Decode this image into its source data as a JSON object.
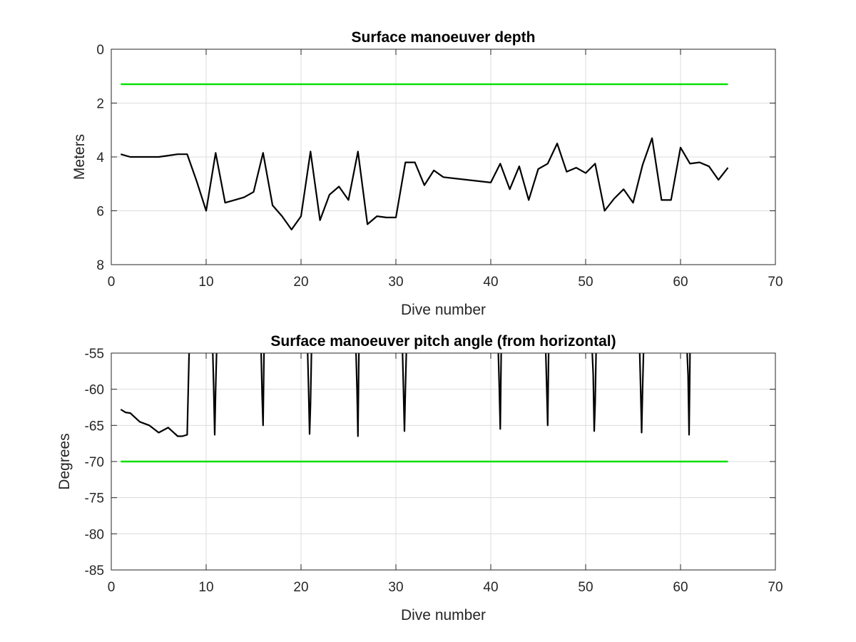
{
  "chart_data": [
    {
      "type": "line",
      "title": "Surface manoeuver depth",
      "xlabel": "Dive number",
      "ylabel": "Meters",
      "xlim": [
        0,
        70
      ],
      "ylim": [
        0,
        8
      ],
      "y_reversed": true,
      "grid": true,
      "x_ticks": [
        "0",
        "10",
        "20",
        "30",
        "40",
        "50",
        "60",
        "70"
      ],
      "y_ticks": [
        "0",
        "2",
        "4",
        "6",
        "8"
      ],
      "series": [
        {
          "color": "#000000",
          "x": [
            1,
            2,
            3,
            4,
            5,
            6,
            7,
            8,
            9,
            10,
            11,
            12,
            13,
            14,
            15,
            16,
            17,
            18,
            19,
            20,
            21,
            22,
            23,
            24,
            25,
            26,
            27,
            28,
            29,
            30,
            31,
            32,
            33,
            34,
            35,
            40,
            41,
            42,
            43,
            44,
            45,
            46,
            47,
            48,
            49,
            50,
            51,
            52,
            53,
            54,
            55,
            56,
            57,
            58,
            59,
            60,
            61,
            62,
            63,
            64,
            65
          ],
          "y": [
            3.9,
            4.0,
            4.0,
            4.0,
            4.0,
            3.95,
            3.9,
            3.9,
            4.9,
            6.0,
            3.85,
            5.7,
            5.6,
            5.5,
            5.3,
            3.85,
            5.8,
            6.2,
            6.7,
            6.2,
            3.8,
            6.35,
            5.4,
            5.1,
            5.6,
            3.8,
            6.5,
            6.2,
            6.25,
            6.25,
            4.2,
            4.2,
            5.05,
            4.5,
            4.75,
            4.95,
            4.25,
            5.2,
            4.35,
            5.6,
            4.45,
            4.25,
            3.5,
            4.55,
            4.4,
            4.6,
            4.25,
            6.0,
            5.55,
            5.2,
            5.7,
            4.3,
            3.3,
            5.6,
            5.6,
            3.65,
            4.25,
            4.2,
            4.35,
            4.85,
            4.4
          ]
        },
        {
          "color": "#00e000",
          "x": [
            1,
            65
          ],
          "y": [
            1.3,
            1.3
          ]
        }
      ]
    },
    {
      "type": "line",
      "title": "Surface manoeuver pitch angle (from horizontal)",
      "xlabel": "Dive number",
      "ylabel": "Degrees",
      "xlim": [
        0,
        70
      ],
      "ylim": [
        -85,
        -55
      ],
      "grid": true,
      "x_ticks": [
        "0",
        "10",
        "20",
        "30",
        "40",
        "50",
        "60",
        "70"
      ],
      "y_ticks": [
        "-55",
        "-60",
        "-65",
        "-70",
        "-75",
        "-80",
        "-85"
      ],
      "series": [
        {
          "color": "#000000",
          "x": [
            1,
            1.5,
            2,
            3,
            4,
            5,
            6,
            7,
            7.5,
            8,
            8.2
          ],
          "y": [
            -62.8,
            -63.2,
            -63.3,
            -64.5,
            -65.0,
            -66.0,
            -65.3,
            -66.5,
            -66.5,
            -66.3,
            -55
          ]
        },
        {
          "color": "#000000",
          "x": [
            10.7,
            10.8,
            10.9,
            11.0,
            11.1
          ],
          "y": [
            -55,
            -60,
            -66.3,
            -60,
            -55
          ]
        },
        {
          "color": "#000000",
          "x": [
            15.8,
            15.9,
            16.0,
            16.1
          ],
          "y": [
            -55,
            -61,
            -65,
            -55
          ]
        },
        {
          "color": "#000000",
          "x": [
            20.7,
            20.8,
            20.9,
            21.0,
            21.1
          ],
          "y": [
            -55,
            -60,
            -66.2,
            -62,
            -55
          ]
        },
        {
          "color": "#000000",
          "x": [
            25.8,
            25.9,
            26.0,
            26.1
          ],
          "y": [
            -55,
            -60,
            -66.5,
            -55
          ]
        },
        {
          "color": "#000000",
          "x": [
            30.7,
            30.8,
            30.9,
            31.0,
            31.1
          ],
          "y": [
            -55,
            -60,
            -65.8,
            -60,
            -55
          ]
        },
        {
          "color": "#000000",
          "x": [
            40.8,
            40.9,
            41.0,
            41.1
          ],
          "y": [
            -55,
            -60,
            -65.5,
            -55
          ]
        },
        {
          "color": "#000000",
          "x": [
            45.8,
            45.9,
            46.0,
            46.1
          ],
          "y": [
            -55,
            -60,
            -65,
            -55
          ]
        },
        {
          "color": "#000000",
          "x": [
            50.7,
            50.8,
            50.9,
            51.0,
            51.1
          ],
          "y": [
            -55,
            -58,
            -65.8,
            -62,
            -55
          ]
        },
        {
          "color": "#000000",
          "x": [
            55.7,
            55.8,
            55.9,
            56.0,
            56.1
          ],
          "y": [
            -55,
            -60,
            -66,
            -60,
            -55
          ]
        },
        {
          "color": "#000000",
          "x": [
            60.7,
            60.8,
            60.9,
            61.0
          ],
          "y": [
            -55,
            -58,
            -66.3,
            -55
          ]
        },
        {
          "color": "#00e000",
          "x": [
            1,
            65
          ],
          "y": [
            -70,
            -70
          ]
        }
      ]
    }
  ]
}
